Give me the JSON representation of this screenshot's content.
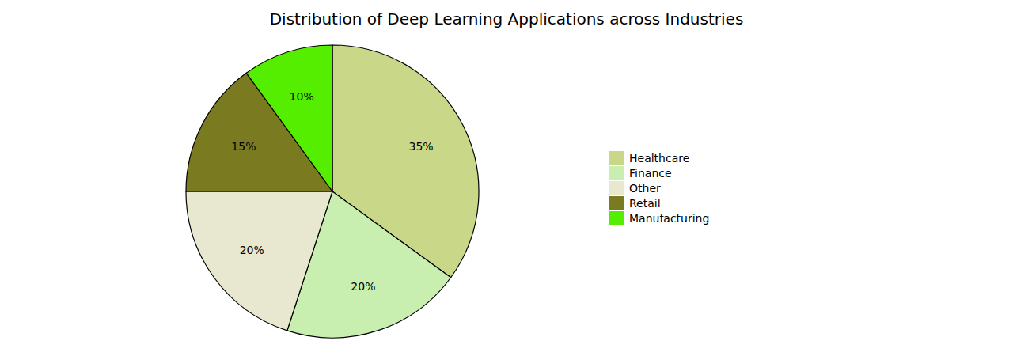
{
  "chart_data": {
    "type": "pie",
    "title": "Distribution of Deep Learning Applications across Industries",
    "categories": [
      "Healthcare",
      "Finance",
      "Other",
      "Retail",
      "Manufacturing"
    ],
    "values": [
      35,
      20,
      20,
      15,
      10
    ],
    "value_labels": [
      "35%",
      "20%",
      "20%",
      "15%",
      "10%"
    ],
    "colors": [
      "#c8d888",
      "#c8eeb0",
      "#e8e8d0",
      "#7a7a20",
      "#55ee00"
    ],
    "data_labels": true,
    "legend": "right"
  }
}
